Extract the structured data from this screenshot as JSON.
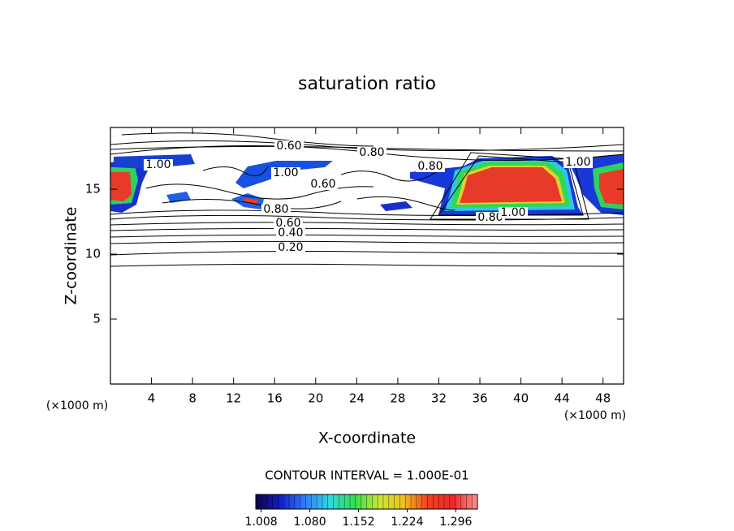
{
  "chart_data": {
    "type": "contour",
    "title": "saturation ratio",
    "xlabel": "X-coordinate",
    "ylabel": "Z-coordinate",
    "x_unit": "(×1000 m)",
    "y_unit": "(×1000 m)",
    "xlim": [
      0,
      50
    ],
    "xticks": [
      4,
      8,
      12,
      16,
      20,
      24,
      28,
      32,
      36,
      40,
      44,
      48
    ],
    "ylim": [
      0,
      19.75
    ],
    "yticks": [
      5,
      10,
      15
    ],
    "contour_levels": [
      {
        "value": 0.2,
        "label": "0.20"
      },
      {
        "value": 0.4,
        "label": "0.40"
      },
      {
        "value": 0.6,
        "label": "0.60"
      },
      {
        "value": 0.8,
        "label": "0.80"
      },
      {
        "value": 1.0,
        "label": "1.00"
      }
    ],
    "contour_interval_text": "CONTOUR INTERVAL = 1.000E-01",
    "colorbar": {
      "lim": [
        1.0,
        1.328
      ],
      "ticks": [
        1.008,
        {
          "value": 1.08,
          "label": "1.080"
        },
        1.152,
        1.224,
        1.296
      ],
      "colormap": [
        "#14004a",
        "#1020c8",
        "#2f7cff",
        "#30d8e0",
        "#30e050",
        "#c8e830",
        "#f0c020",
        "#f04020",
        "#f02828",
        "#ff9090"
      ]
    }
  }
}
